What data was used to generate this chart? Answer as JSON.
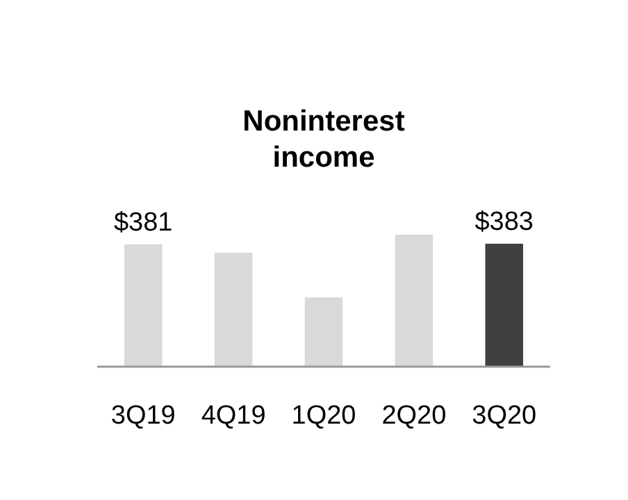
{
  "chart_data": {
    "type": "bar",
    "title": "Noninterest income",
    "categories": [
      "3Q19",
      "4Q19",
      "1Q20",
      "2Q20",
      "3Q20"
    ],
    "values": [
      381,
      355,
      216,
      411,
      383
    ],
    "value_labels": [
      "$381",
      null,
      null,
      null,
      "$383"
    ],
    "colors": [
      "#d9d9d9",
      "#d9d9d9",
      "#d9d9d9",
      "#d9d9d9",
      "#404040"
    ]
  }
}
